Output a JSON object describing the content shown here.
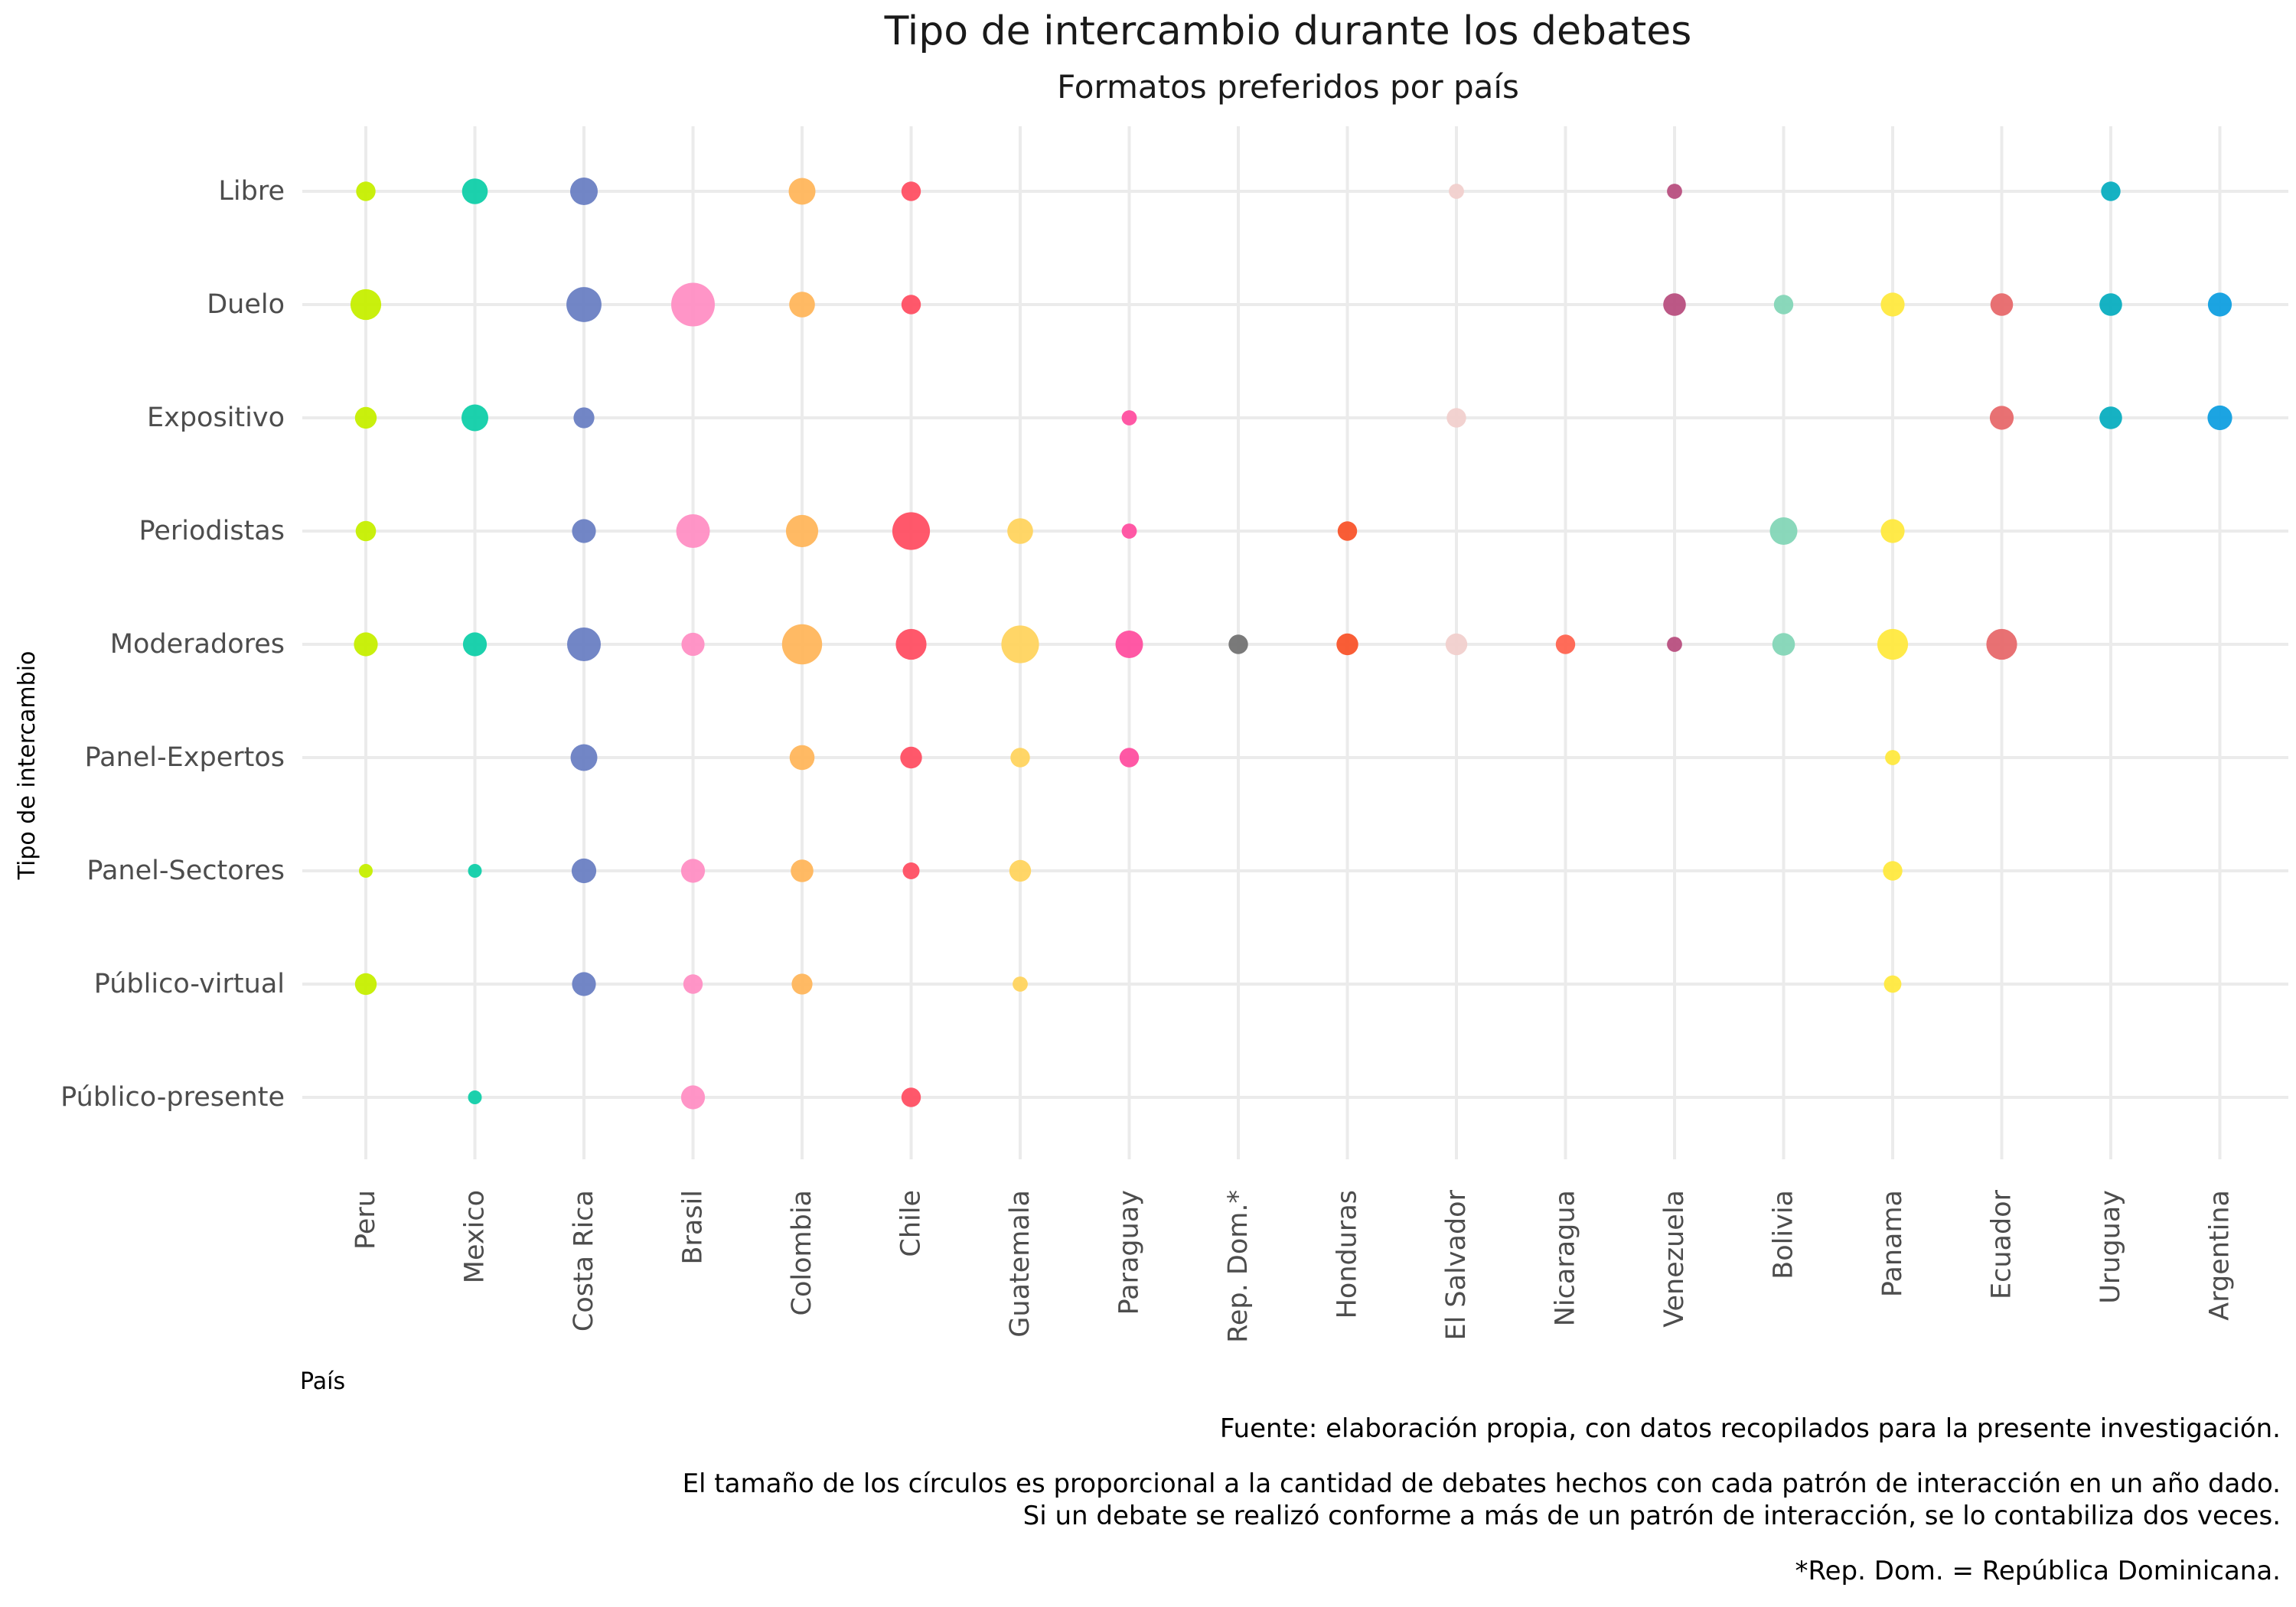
{
  "chart_data": {
    "type": "scatter",
    "title": "Tipo de intercambio durante los debates",
    "subtitle": "Formatos preferidos por país",
    "xlabel": "País",
    "ylabel": "Tipo de intercambio",
    "categories_x": [
      "Peru",
      "Mexico",
      "Costa Rica",
      "Brasil",
      "Colombia",
      "Chile",
      "Guatemala",
      "Paraguay",
      "Rep. Dom.*",
      "Honduras",
      "El Salvador",
      "Nicaragua",
      "Venezuela",
      "Bolivia",
      "Panama",
      "Ecuador",
      "Uruguay",
      "Argentina"
    ],
    "categories_y": [
      "Libre",
      "Duelo",
      "Expositivo",
      "Periodistas",
      "Moderadores",
      "Panel-Expertos",
      "Panel-Sectores",
      "Público-virtual",
      "Público-presente"
    ],
    "grid": true,
    "legend": "none",
    "size_meaning": "relative number of debates",
    "colors": {
      "Peru": "#c6ef00",
      "Mexico": "#10cfa9",
      "Costa Rica": "#6a80c3",
      "Brasil": "#ff8fc4",
      "Colombia": "#ffb65c",
      "Chile": "#ff4f63",
      "Guatemala": "#ffd45f",
      "Paraguay": "#ff4fa0",
      "Rep. Dom.*": "#737373",
      "Honduras": "#f9542b",
      "El Salvador": "#f1d0cd",
      "Nicaragua": "#ff6450",
      "Venezuela": "#b84f7f",
      "Bolivia": "#84d6b7",
      "Panama": "#ffe93f",
      "Ecuador": "#e7696b",
      "Uruguay": "#0aaec0",
      "Argentina": "#109fe0"
    },
    "points": [
      {
        "x": "Peru",
        "y": "Libre",
        "size": 2
      },
      {
        "x": "Peru",
        "y": "Duelo",
        "size": 5
      },
      {
        "x": "Peru",
        "y": "Expositivo",
        "size": 2.5
      },
      {
        "x": "Peru",
        "y": "Periodistas",
        "size": 2.2
      },
      {
        "x": "Peru",
        "y": "Moderadores",
        "size": 3
      },
      {
        "x": "Peru",
        "y": "Panel-Sectores",
        "size": 1
      },
      {
        "x": "Peru",
        "y": "Público-virtual",
        "size": 2.5
      },
      {
        "x": "Mexico",
        "y": "Libre",
        "size": 3.5
      },
      {
        "x": "Mexico",
        "y": "Expositivo",
        "size": 3.8
      },
      {
        "x": "Mexico",
        "y": "Moderadores",
        "size": 3
      },
      {
        "x": "Mexico",
        "y": "Panel-Sectores",
        "size": 1
      },
      {
        "x": "Mexico",
        "y": "Público-presente",
        "size": 1
      },
      {
        "x": "Costa Rica",
        "y": "Libre",
        "size": 4
      },
      {
        "x": "Costa Rica",
        "y": "Duelo",
        "size": 6.5
      },
      {
        "x": "Costa Rica",
        "y": "Expositivo",
        "size": 2.3
      },
      {
        "x": "Costa Rica",
        "y": "Periodistas",
        "size": 3
      },
      {
        "x": "Costa Rica",
        "y": "Moderadores",
        "size": 6
      },
      {
        "x": "Costa Rica",
        "y": "Panel-Expertos",
        "size": 3.8
      },
      {
        "x": "Costa Rica",
        "y": "Panel-Sectores",
        "size": 3.2
      },
      {
        "x": "Costa Rica",
        "y": "Público-virtual",
        "size": 3
      },
      {
        "x": "Brasil",
        "y": "Duelo",
        "size": 10
      },
      {
        "x": "Brasil",
        "y": "Periodistas",
        "size": 6
      },
      {
        "x": "Brasil",
        "y": "Moderadores",
        "size": 2.8
      },
      {
        "x": "Brasil",
        "y": "Panel-Sectores",
        "size": 3
      },
      {
        "x": "Brasil",
        "y": "Público-virtual",
        "size": 2
      },
      {
        "x": "Brasil",
        "y": "Público-presente",
        "size": 3
      },
      {
        "x": "Colombia",
        "y": "Libre",
        "size": 3.8
      },
      {
        "x": "Colombia",
        "y": "Duelo",
        "size": 3.5
      },
      {
        "x": "Colombia",
        "y": "Periodistas",
        "size": 5.5
      },
      {
        "x": "Colombia",
        "y": "Moderadores",
        "size": 8.5
      },
      {
        "x": "Colombia",
        "y": "Panel-Expertos",
        "size": 3.3
      },
      {
        "x": "Colombia",
        "y": "Panel-Sectores",
        "size": 2.7
      },
      {
        "x": "Colombia",
        "y": "Público-virtual",
        "size": 2.3
      },
      {
        "x": "Chile",
        "y": "Libre",
        "size": 2
      },
      {
        "x": "Chile",
        "y": "Duelo",
        "size": 2
      },
      {
        "x": "Chile",
        "y": "Periodistas",
        "size": 7.5
      },
      {
        "x": "Chile",
        "y": "Moderadores",
        "size": 5
      },
      {
        "x": "Chile",
        "y": "Panel-Expertos",
        "size": 2.5
      },
      {
        "x": "Chile",
        "y": "Panel-Sectores",
        "size": 1.5
      },
      {
        "x": "Chile",
        "y": "Público-presente",
        "size": 2
      },
      {
        "x": "Guatemala",
        "y": "Periodistas",
        "size": 3.5
      },
      {
        "x": "Guatemala",
        "y": "Moderadores",
        "size": 7.5
      },
      {
        "x": "Guatemala",
        "y": "Panel-Expertos",
        "size": 2
      },
      {
        "x": "Guatemala",
        "y": "Panel-Sectores",
        "size": 2.5
      },
      {
        "x": "Guatemala",
        "y": "Público-virtual",
        "size": 1.2
      },
      {
        "x": "Paraguay",
        "y": "Expositivo",
        "size": 1.2
      },
      {
        "x": "Paraguay",
        "y": "Periodistas",
        "size": 1.2
      },
      {
        "x": "Paraguay",
        "y": "Moderadores",
        "size": 4
      },
      {
        "x": "Paraguay",
        "y": "Panel-Expertos",
        "size": 2
      },
      {
        "x": "Rep. Dom.*",
        "y": "Moderadores",
        "size": 2
      },
      {
        "x": "Honduras",
        "y": "Periodistas",
        "size": 2
      },
      {
        "x": "Honduras",
        "y": "Moderadores",
        "size": 2.5
      },
      {
        "x": "El Salvador",
        "y": "Libre",
        "size": 1.2
      },
      {
        "x": "El Salvador",
        "y": "Expositivo",
        "size": 2
      },
      {
        "x": "El Salvador",
        "y": "Moderadores",
        "size": 2.5
      },
      {
        "x": "Nicaragua",
        "y": "Moderadores",
        "size": 2
      },
      {
        "x": "Venezuela",
        "y": "Libre",
        "size": 1.2
      },
      {
        "x": "Venezuela",
        "y": "Duelo",
        "size": 2.7
      },
      {
        "x": "Venezuela",
        "y": "Moderadores",
        "size": 1.2
      },
      {
        "x": "Bolivia",
        "y": "Duelo",
        "size": 2
      },
      {
        "x": "Bolivia",
        "y": "Periodistas",
        "size": 4
      },
      {
        "x": "Bolivia",
        "y": "Moderadores",
        "size": 2.7
      },
      {
        "x": "Panama",
        "y": "Duelo",
        "size": 3
      },
      {
        "x": "Panama",
        "y": "Periodistas",
        "size": 3
      },
      {
        "x": "Panama",
        "y": "Moderadores",
        "size": 5
      },
      {
        "x": "Panama",
        "y": "Panel-Expertos",
        "size": 1.2
      },
      {
        "x": "Panama",
        "y": "Panel-Sectores",
        "size": 2
      },
      {
        "x": "Panama",
        "y": "Público-virtual",
        "size": 1.6
      },
      {
        "x": "Ecuador",
        "y": "Duelo",
        "size": 2.7
      },
      {
        "x": "Ecuador",
        "y": "Expositivo",
        "size": 3
      },
      {
        "x": "Ecuador",
        "y": "Moderadores",
        "size": 5
      },
      {
        "x": "Uruguay",
        "y": "Libre",
        "size": 2
      },
      {
        "x": "Uruguay",
        "y": "Duelo",
        "size": 2.7
      },
      {
        "x": "Uruguay",
        "y": "Expositivo",
        "size": 2.7
      },
      {
        "x": "Argentina",
        "y": "Duelo",
        "size": 3
      },
      {
        "x": "Argentina",
        "y": "Expositivo",
        "size": 3.2
      }
    ],
    "caption": [
      "Fuente: elaboración propia, con datos recopilados para la presente investigación.",
      "El tamaño de los círculos es proporcional a la cantidad de debates hechos con cada patrón de interacción en un año dado.",
      "Si un debate se realizó conforme a más de un patrón de interacción, se lo contabiliza dos veces.",
      "*Rep. Dom. = República Dominicana."
    ]
  }
}
